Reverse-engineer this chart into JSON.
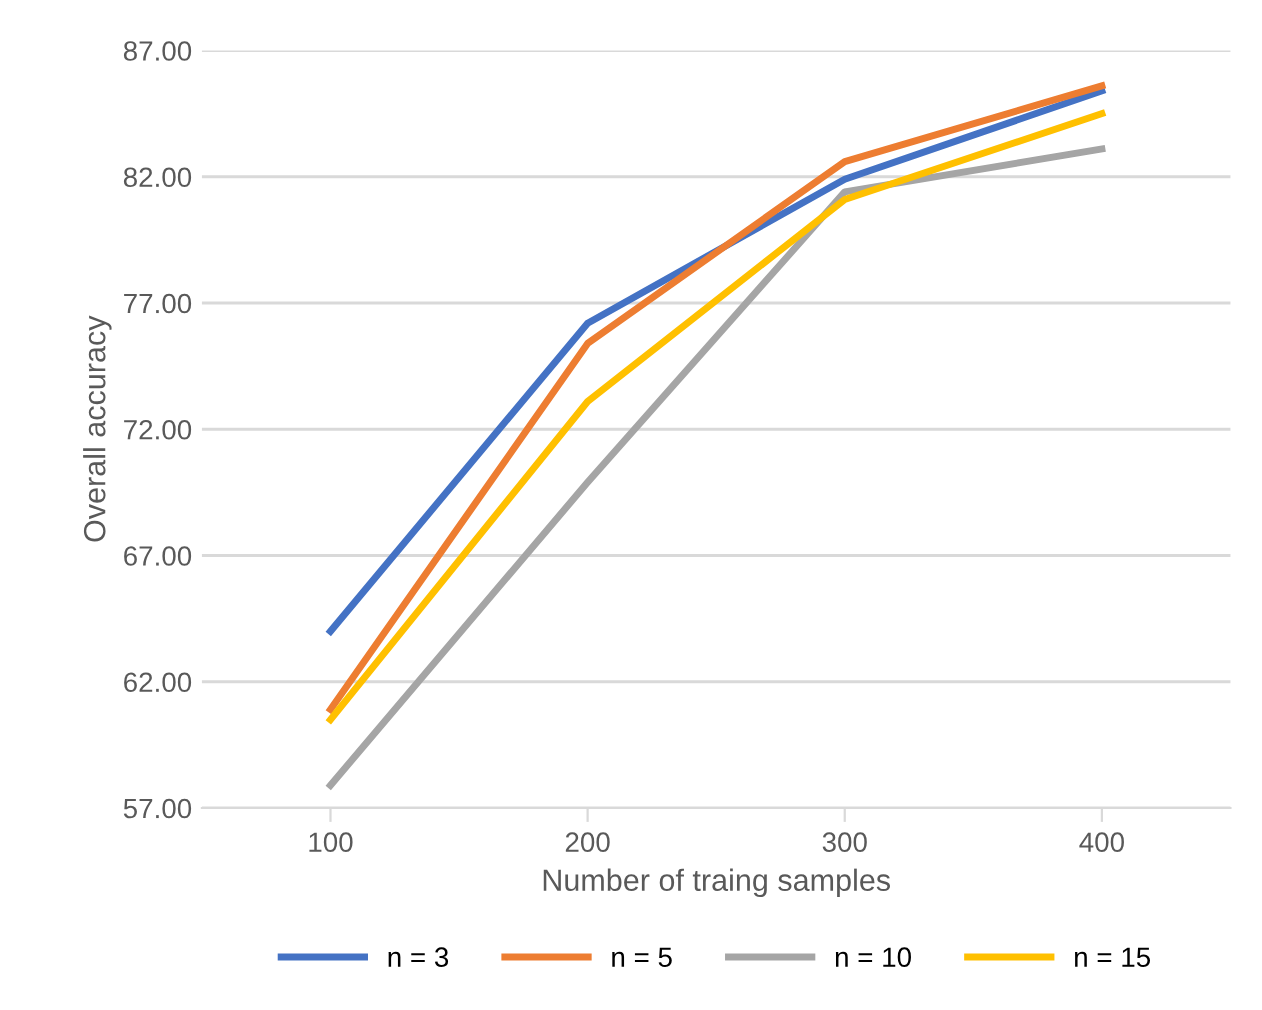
{
  "chart_data": {
    "type": "line",
    "xlabel": "Number of traing samples",
    "ylabel": "Overall accuracy",
    "categories": [
      "100",
      "200",
      "300",
      "400"
    ],
    "series": [
      {
        "name": "n = 3",
        "color": "#4472c4",
        "values": [
          64.0,
          76.2,
          81.9,
          85.4
        ]
      },
      {
        "name": "n = 5",
        "color": "#ed7d31",
        "values": [
          60.9,
          75.4,
          82.6,
          85.6
        ]
      },
      {
        "name": "n = 10",
        "color": "#a5a5a5",
        "values": [
          57.9,
          69.9,
          81.4,
          83.1
        ]
      },
      {
        "name": "n = 15",
        "color": "#ffc000",
        "values": [
          60.5,
          73.1,
          81.1,
          84.5
        ]
      }
    ],
    "ylim": [
      57,
      87
    ],
    "yticks": [
      {
        "value": 57,
        "label": "57.00"
      },
      {
        "value": 62,
        "label": "62.00"
      },
      {
        "value": 67,
        "label": "67.00"
      },
      {
        "value": 72,
        "label": "72.00"
      },
      {
        "value": 77,
        "label": "77.00"
      },
      {
        "value": 82,
        "label": "82.00"
      },
      {
        "value": 87,
        "label": "87.00"
      }
    ],
    "grid": "y",
    "legend": "bottom",
    "marker": "none",
    "line_style": "solid"
  }
}
